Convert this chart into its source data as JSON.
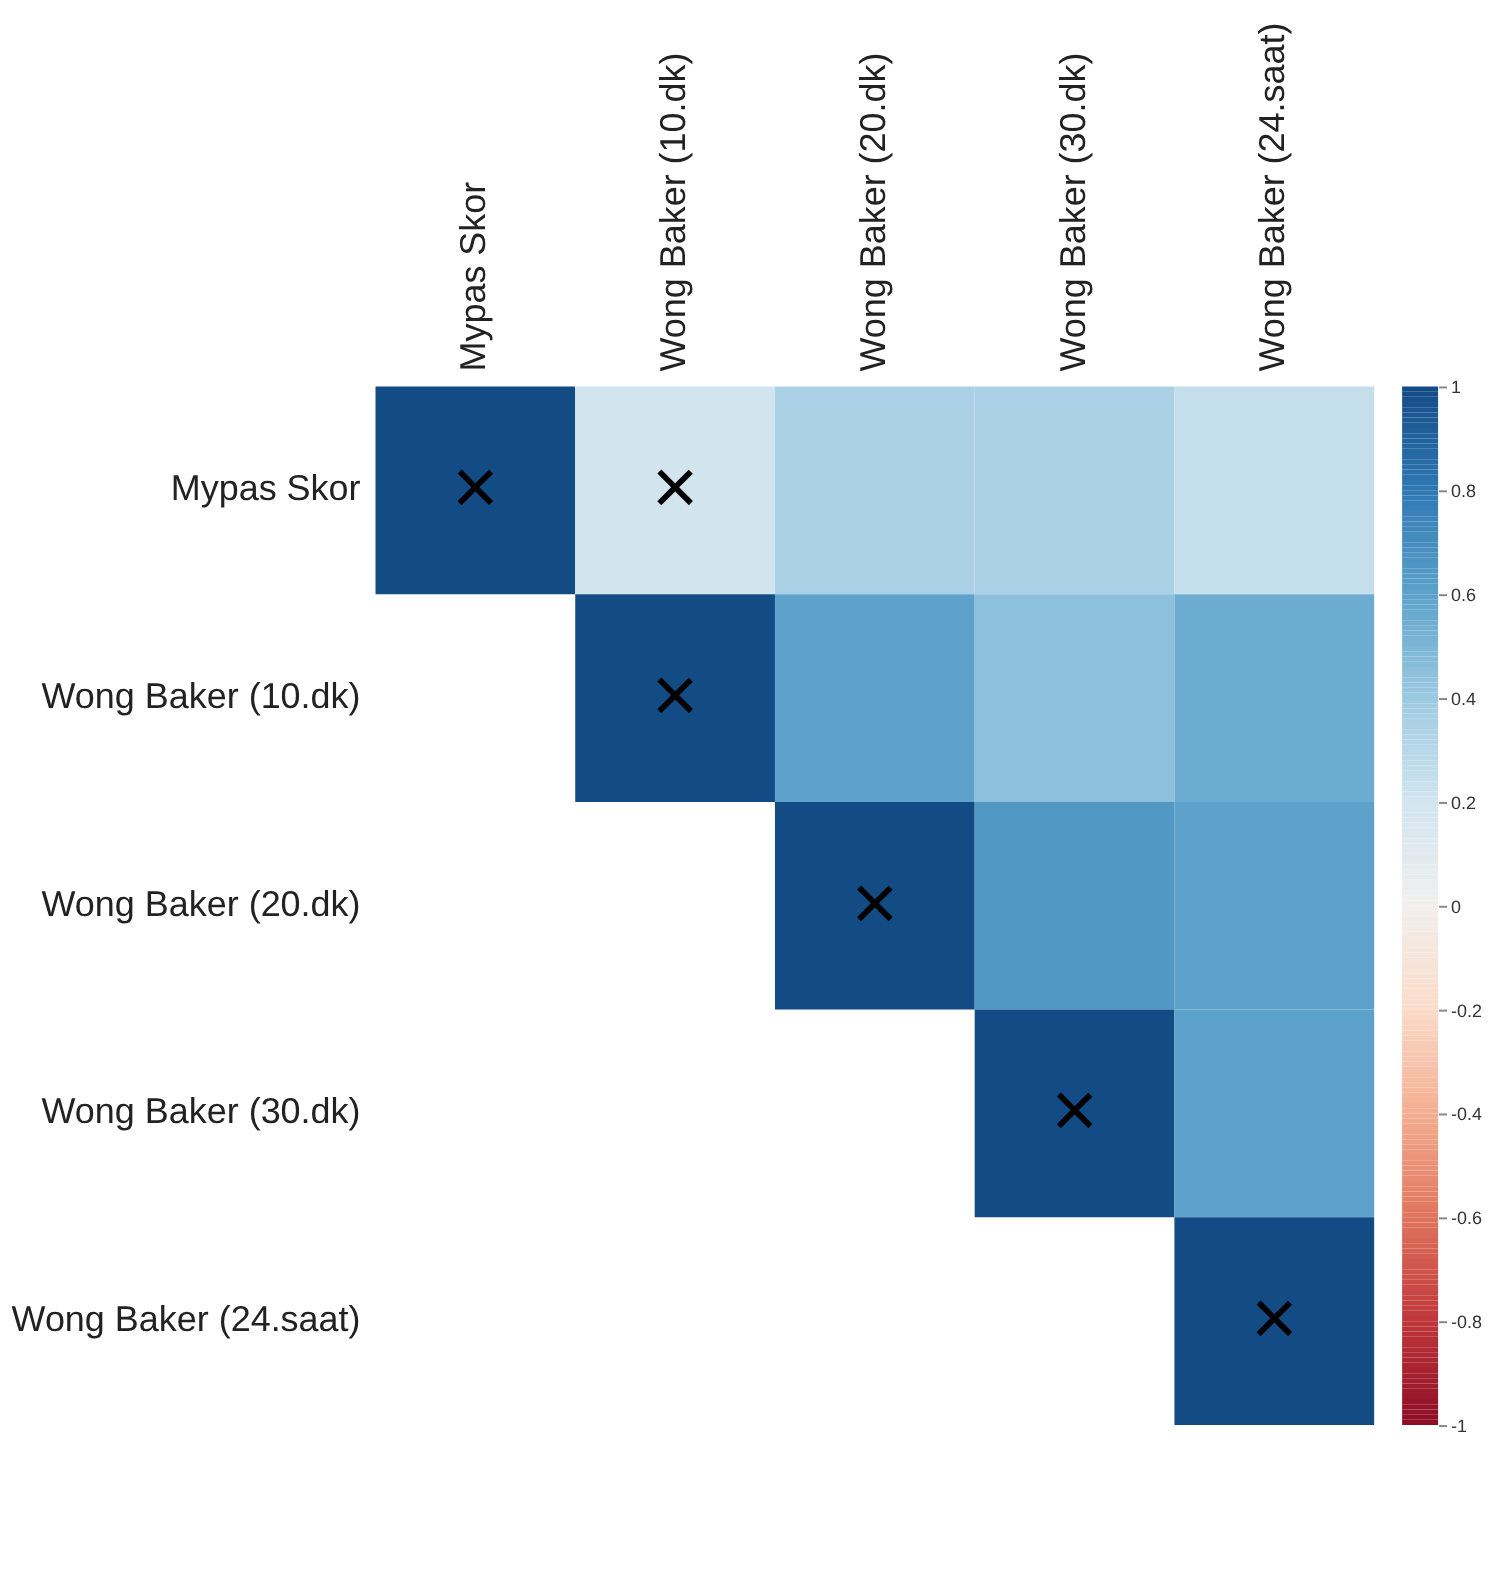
{
  "chart_data": {
    "type": "heatmap",
    "categories": [
      "Mypas Skor",
      "Wong Baker (10.dk)",
      "Wong Baker (20.dk)",
      "Wong Baker (30.dk)",
      "Wong Baker (24.saat)"
    ],
    "y_categories": [
      "Mypas Skor",
      "Wong Baker (10.dk)",
      "Wong Baker (20.dk)",
      "Wong Baker (30.dk)",
      "Wong Baker (24.saat)"
    ],
    "cells": [
      [
        1,
        0.2,
        0.35,
        0.35,
        0.25
      ],
      [
        null,
        1,
        0.6,
        0.45,
        0.55
      ],
      [
        null,
        null,
        1,
        0.65,
        0.6
      ],
      [
        null,
        null,
        null,
        1,
        0.6
      ],
      [
        null,
        null,
        null,
        null,
        1
      ]
    ],
    "cell_labels": [
      [
        "×",
        "×",
        null,
        null,
        null
      ],
      [
        null,
        "×",
        null,
        null,
        null
      ],
      [
        null,
        null,
        "×",
        null,
        null
      ],
      [
        null,
        null,
        null,
        "×",
        null
      ],
      [
        null,
        null,
        null,
        null,
        "×"
      ]
    ],
    "clim": [
      -1,
      1
    ],
    "cticks": [
      -1,
      -0.8,
      -0.6,
      -0.4,
      -0.2,
      0,
      0.2,
      0.4,
      0.6,
      0.8,
      1
    ]
  }
}
